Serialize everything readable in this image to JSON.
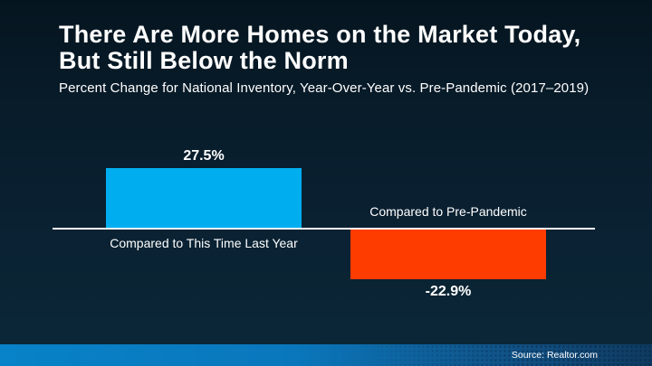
{
  "slide": {
    "title_line1": "There Are More Homes on the Market Today,",
    "title_line2": "But Still Below the Norm",
    "subtitle": "Percent Change for National Inventory, Year-Over-Year vs. Pre-Pandemic (2017–2019)",
    "source": "Source: Realtor.com"
  },
  "colors": {
    "background_top": "#051520",
    "background_bottom": "#0B2737",
    "positive_bar": "#00AEEF",
    "negative_bar": "#FF3C00",
    "axis_line": "#FFFFFF",
    "text": "#FFFFFF",
    "footer_left": "#0882C8",
    "footer_right": "#0E3A5F"
  },
  "chart_data": {
    "type": "bar",
    "orientation": "vertical",
    "categories": [
      "Compared to This Time Last Year",
      "Compared to Pre-Pandemic"
    ],
    "values": [
      27.5,
      -22.9
    ],
    "value_labels": [
      "27.5%",
      "-22.9%"
    ],
    "bar_colors": [
      "#00AEEF",
      "#FF3C00"
    ],
    "title": "There Are More Homes on the Market Today, But Still Below the Norm",
    "subtitle": "Percent Change for National Inventory, Year-Over-Year vs. Pre-Pandemic (2017–2019)",
    "xlabel": "",
    "ylabel": "",
    "baseline": 0,
    "ylim": [
      -30,
      35
    ],
    "grid": false,
    "legend": false,
    "source": "Source: Realtor.com"
  }
}
